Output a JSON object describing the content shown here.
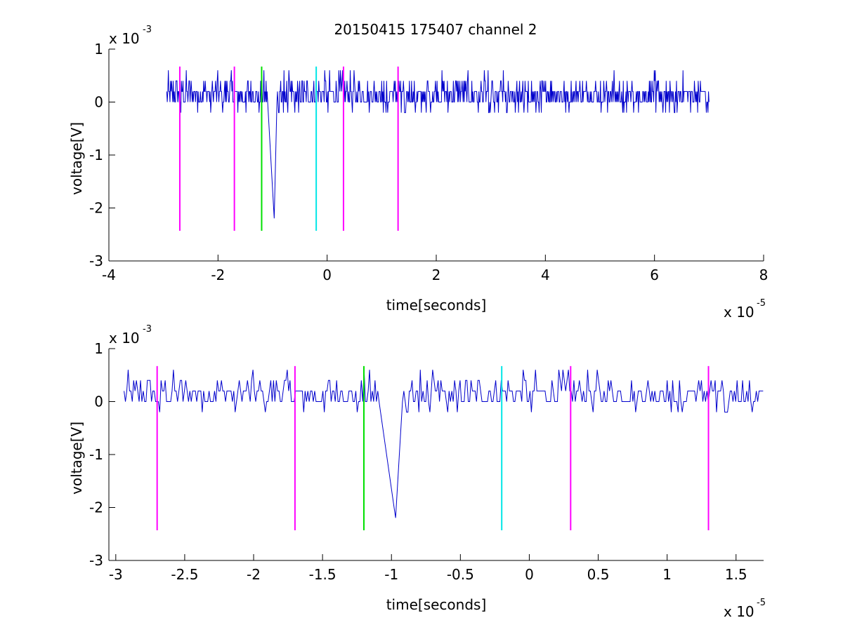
{
  "figure_title": "20150415 175407 channel 2",
  "chart_data": [
    {
      "type": "line",
      "title": "20150415 175407 channel 2",
      "xlabel": "time[seconds]",
      "ylabel": "voltage[V]",
      "x_exponent_label": "x 10",
      "x_exponent": "-5",
      "y_exponent_label": "x 10",
      "y_exponent": "-3",
      "xlim": [
        -4,
        8
      ],
      "ylim": [
        -3,
        1
      ],
      "x_ticks": [
        "-4",
        "-2",
        "0",
        "2",
        "4",
        "6",
        "8"
      ],
      "y_ticks": [
        "-3",
        "-2",
        "-1",
        "0",
        "1"
      ],
      "grid": false,
      "signal_color": "#0000cc",
      "signal_x_range": [
        -2.94,
        7.0
      ],
      "signal_baseline": 0.13,
      "signal_noise_levels": [
        0.0,
        0.2,
        0.4,
        -0.2,
        0.6
      ],
      "spike": {
        "x": -0.97,
        "y": -2.2,
        "color": "#0000cc"
      },
      "markers": [
        {
          "x": -2.7,
          "color": "#ff00ff",
          "y_range": [
            -2.43,
            0.67
          ]
        },
        {
          "x": -1.7,
          "color": "#ff00ff",
          "y_range": [
            -2.43,
            0.67
          ]
        },
        {
          "x": -1.2,
          "color": "#00e000",
          "y_range": [
            -2.43,
            0.67
          ]
        },
        {
          "x": -0.2,
          "color": "#00e6e6",
          "y_range": [
            -2.43,
            0.67
          ]
        },
        {
          "x": 0.3,
          "color": "#ff00ff",
          "y_range": [
            -2.43,
            0.67
          ]
        },
        {
          "x": 1.3,
          "color": "#ff00ff",
          "y_range": [
            -2.43,
            0.67
          ]
        }
      ]
    },
    {
      "type": "line",
      "title": "",
      "xlabel": "time[seconds]",
      "ylabel": "voltage[V]",
      "x_exponent_label": "x 10",
      "x_exponent": "-5",
      "y_exponent_label": "x 10",
      "y_exponent": "-3",
      "xlim": [
        -3.05,
        1.7
      ],
      "ylim": [
        -3,
        1
      ],
      "x_ticks": [
        "-3",
        "-2.5",
        "-2",
        "-1.5",
        "-1",
        "-0.5",
        "0",
        "0.5",
        "1",
        "1.5"
      ],
      "y_ticks": [
        "-3",
        "-2",
        "-1",
        "0",
        "1"
      ],
      "grid": false,
      "signal_color": "#0000cc",
      "signal_x_range": [
        -2.94,
        1.7
      ],
      "signal_baseline": 0.13,
      "signal_noise_levels": [
        0.0,
        0.2,
        0.4,
        -0.2,
        0.6
      ],
      "spike": {
        "x": -0.97,
        "y": -2.2,
        "color": "#0000cc"
      },
      "markers": [
        {
          "x": -2.7,
          "color": "#ff00ff",
          "y_range": [
            -2.43,
            0.67
          ]
        },
        {
          "x": -1.7,
          "color": "#ff00ff",
          "y_range": [
            -2.43,
            0.67
          ]
        },
        {
          "x": -1.2,
          "color": "#00e000",
          "y_range": [
            -2.43,
            0.67
          ]
        },
        {
          "x": -0.2,
          "color": "#00e6e6",
          "y_range": [
            -2.43,
            0.67
          ]
        },
        {
          "x": 0.3,
          "color": "#ff00ff",
          "y_range": [
            -2.43,
            0.67
          ]
        },
        {
          "x": 1.3,
          "color": "#ff00ff",
          "y_range": [
            -2.43,
            0.67
          ]
        }
      ]
    }
  ]
}
